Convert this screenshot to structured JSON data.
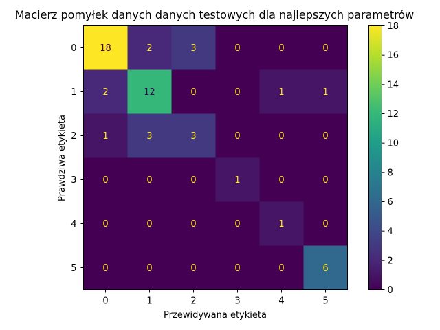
{
  "chart_data": {
    "type": "heatmap",
    "title": "Macierz pomyłek danych danych testowych dla najlepszych parametrów",
    "xlabel": "Przewidywana etykieta",
    "ylabel": "Prawdziwa etykieta",
    "x_categories": [
      "0",
      "1",
      "2",
      "3",
      "4",
      "5"
    ],
    "y_categories": [
      "0",
      "1",
      "2",
      "3",
      "4",
      "5"
    ],
    "values": [
      [
        18,
        2,
        3,
        0,
        0,
        0
      ],
      [
        2,
        12,
        0,
        0,
        1,
        1
      ],
      [
        1,
        3,
        3,
        0,
        0,
        0
      ],
      [
        0,
        0,
        0,
        1,
        0,
        0
      ],
      [
        0,
        0,
        0,
        0,
        1,
        0
      ],
      [
        0,
        0,
        0,
        0,
        0,
        6
      ]
    ],
    "colorscale": "viridis",
    "vmin": 0,
    "vmax": 18,
    "colorbar_ticks": [
      "0",
      "2",
      "4",
      "6",
      "8",
      "10",
      "12",
      "14",
      "16",
      "18"
    ],
    "grid": false
  }
}
